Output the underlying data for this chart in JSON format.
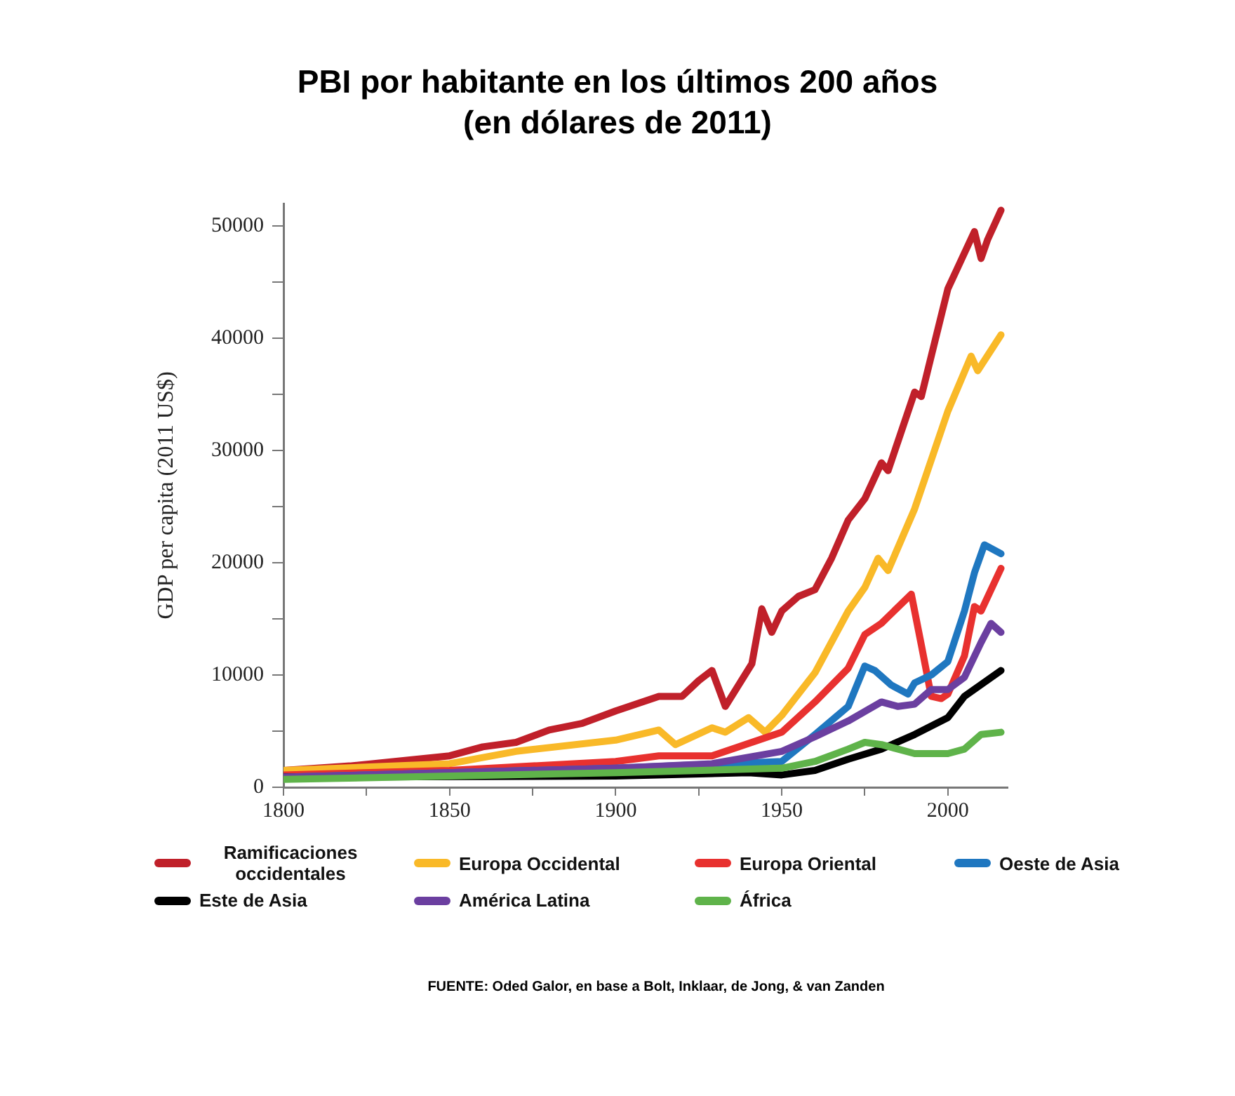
{
  "chart_data": {
    "type": "line",
    "title": "PBI por habitante en los últimos 200 años\n(en dólares de 2011)",
    "ylabel": "GDP per capita (2011 US$)",
    "xlim": [
      1800,
      2018
    ],
    "xticks": [
      1800,
      {
        "value": 1825,
        "label": null
      },
      1850,
      {
        "value": 1875,
        "label": null
      },
      1900,
      {
        "value": 1925,
        "label": null
      },
      1950,
      {
        "value": 1975,
        "label": null
      },
      2000
    ],
    "ylim": [
      0,
      52000
    ],
    "yticks": [
      0,
      {
        "value": 5000,
        "label": null
      },
      10000,
      {
        "value": 15000,
        "label": null
      },
      20000,
      {
        "value": 25000,
        "label": null
      },
      30000,
      {
        "value": 35000,
        "label": null
      },
      40000,
      {
        "value": 45000,
        "label": null
      },
      50000
    ],
    "grid": false,
    "legend": "bottom",
    "marker": "none",
    "line_style": "solid",
    "annotations": [
      "FUENTE: Oded Galor, en base a Bolt, Inklaar, de Jong, & van Zanden"
    ],
    "series": [
      {
        "name": "Ramificaciones occidentales",
        "color": "#c0202a",
        "x": [
          1800,
          1820,
          1850,
          1860,
          1870,
          1880,
          1890,
          1900,
          1913,
          1920,
          1925,
          1929,
          1933,
          1941,
          1944,
          1947,
          1950,
          1955,
          1960,
          1965,
          1970,
          1975,
          1980,
          1982,
          1990,
          1992,
          2000,
          2008,
          2010,
          2012,
          2016
        ],
        "values": [
          1500,
          1900,
          2800,
          3600,
          4000,
          5100,
          5700,
          6800,
          8100,
          8100,
          9500,
          10400,
          7200,
          11000,
          15900,
          13800,
          15700,
          17000,
          17600,
          20400,
          23800,
          25700,
          28900,
          28200,
          35200,
          34800,
          44400,
          49500,
          47100,
          48800,
          51400
        ]
      },
      {
        "name": "Europa Occidental",
        "color": "#f9b928",
        "x": [
          1800,
          1850,
          1870,
          1900,
          1913,
          1918,
          1929,
          1933,
          1940,
          1945,
          1950,
          1960,
          1970,
          1975,
          1979,
          1982,
          1990,
          2000,
          2007,
          2009,
          2016
        ],
        "values": [
          1500,
          2100,
          3200,
          4200,
          5100,
          3800,
          5300,
          4900,
          6200,
          4900,
          6400,
          10200,
          15700,
          17800,
          20400,
          19300,
          24800,
          33500,
          38400,
          37100,
          40300
        ]
      },
      {
        "name": "Europa Oriental",
        "color": "#e8312f",
        "x": [
          1800,
          1850,
          1900,
          1913,
          1929,
          1950,
          1960,
          1970,
          1975,
          1980,
          1989,
          1992,
          1995,
          1998,
          2000,
          2005,
          2008,
          2010,
          2016
        ],
        "values": [
          1100,
          1500,
          2300,
          2800,
          2800,
          4900,
          7600,
          10600,
          13600,
          14600,
          17200,
          12700,
          8100,
          7900,
          8300,
          11700,
          16100,
          15700,
          19500
        ]
      },
      {
        "name": "Oeste de Asia",
        "color": "#1f77c0",
        "x": [
          1800,
          1900,
          1950,
          1960,
          1970,
          1975,
          1978,
          1983,
          1988,
          1990,
          1995,
          2000,
          2005,
          2008,
          2011,
          2016
        ],
        "values": [
          900,
          1700,
          2300,
          4700,
          7200,
          10800,
          10400,
          9100,
          8300,
          9300,
          10000,
          11200,
          15700,
          19100,
          21600,
          20800
        ]
      },
      {
        "name": "Este de Asia",
        "color": "#000000",
        "x": [
          1800,
          1900,
          1940,
          1950,
          1960,
          1970,
          1980,
          1990,
          2000,
          2005,
          2016
        ],
        "values": [
          900,
          1000,
          1300,
          1100,
          1500,
          2500,
          3400,
          4700,
          6200,
          8100,
          10400
        ]
      },
      {
        "name": "América Latina",
        "color": "#6b3fa0",
        "x": [
          1800,
          1900,
          1929,
          1950,
          1960,
          1970,
          1980,
          1985,
          1990,
          1995,
          2000,
          2005,
          2010,
          2013,
          2016
        ],
        "values": [
          900,
          1700,
          2100,
          3200,
          4500,
          5900,
          7600,
          7200,
          7400,
          8700,
          8700,
          9800,
          12900,
          14600,
          13800
        ]
      },
      {
        "name": "África",
        "color": "#5fb34a",
        "x": [
          1800,
          1900,
          1950,
          1960,
          1970,
          1975,
          1980,
          1990,
          2000,
          2005,
          2010,
          2016
        ],
        "values": [
          700,
          1300,
          1700,
          2300,
          3400,
          4000,
          3800,
          3000,
          3000,
          3400,
          4700,
          4900
        ]
      }
    ]
  }
}
